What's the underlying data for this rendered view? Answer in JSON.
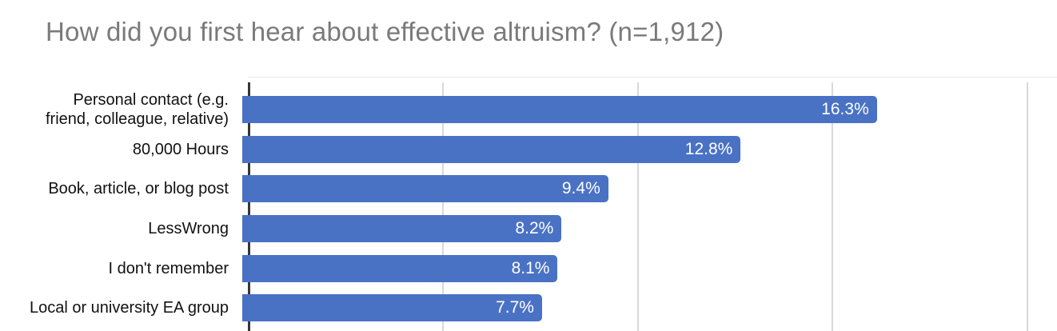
{
  "title": "How did you first hear about effective altruism? (n=1,912)",
  "chart_data": {
    "type": "bar",
    "orientation": "horizontal",
    "title": "How did you first hear about effective altruism? (n=1,912)",
    "categories": [
      "Personal contact (e.g.\nfriend, colleague, relative)",
      "80,000 Hours",
      "Book, article, or blog post",
      "LessWrong",
      "I don't remember",
      "Local or university EA group"
    ],
    "values": [
      16.3,
      12.8,
      9.4,
      8.2,
      8.1,
      7.7
    ],
    "value_labels": [
      "16.3%",
      "12.8%",
      "9.4%",
      "8.2%",
      "8.1%",
      "7.7%"
    ],
    "xlabel": "",
    "ylabel": "",
    "xlim": [
      0,
      20.72
    ],
    "gridlines_pct": [
      5,
      10,
      15,
      20
    ],
    "grid": true,
    "legend": "none",
    "colors": {
      "bar": "#4a72c4",
      "value_label": "#ffffff",
      "title": "#7a7a7a",
      "category_label": "#111111",
      "axis_line": "#363636",
      "gridline": "#d9d9d9"
    }
  }
}
